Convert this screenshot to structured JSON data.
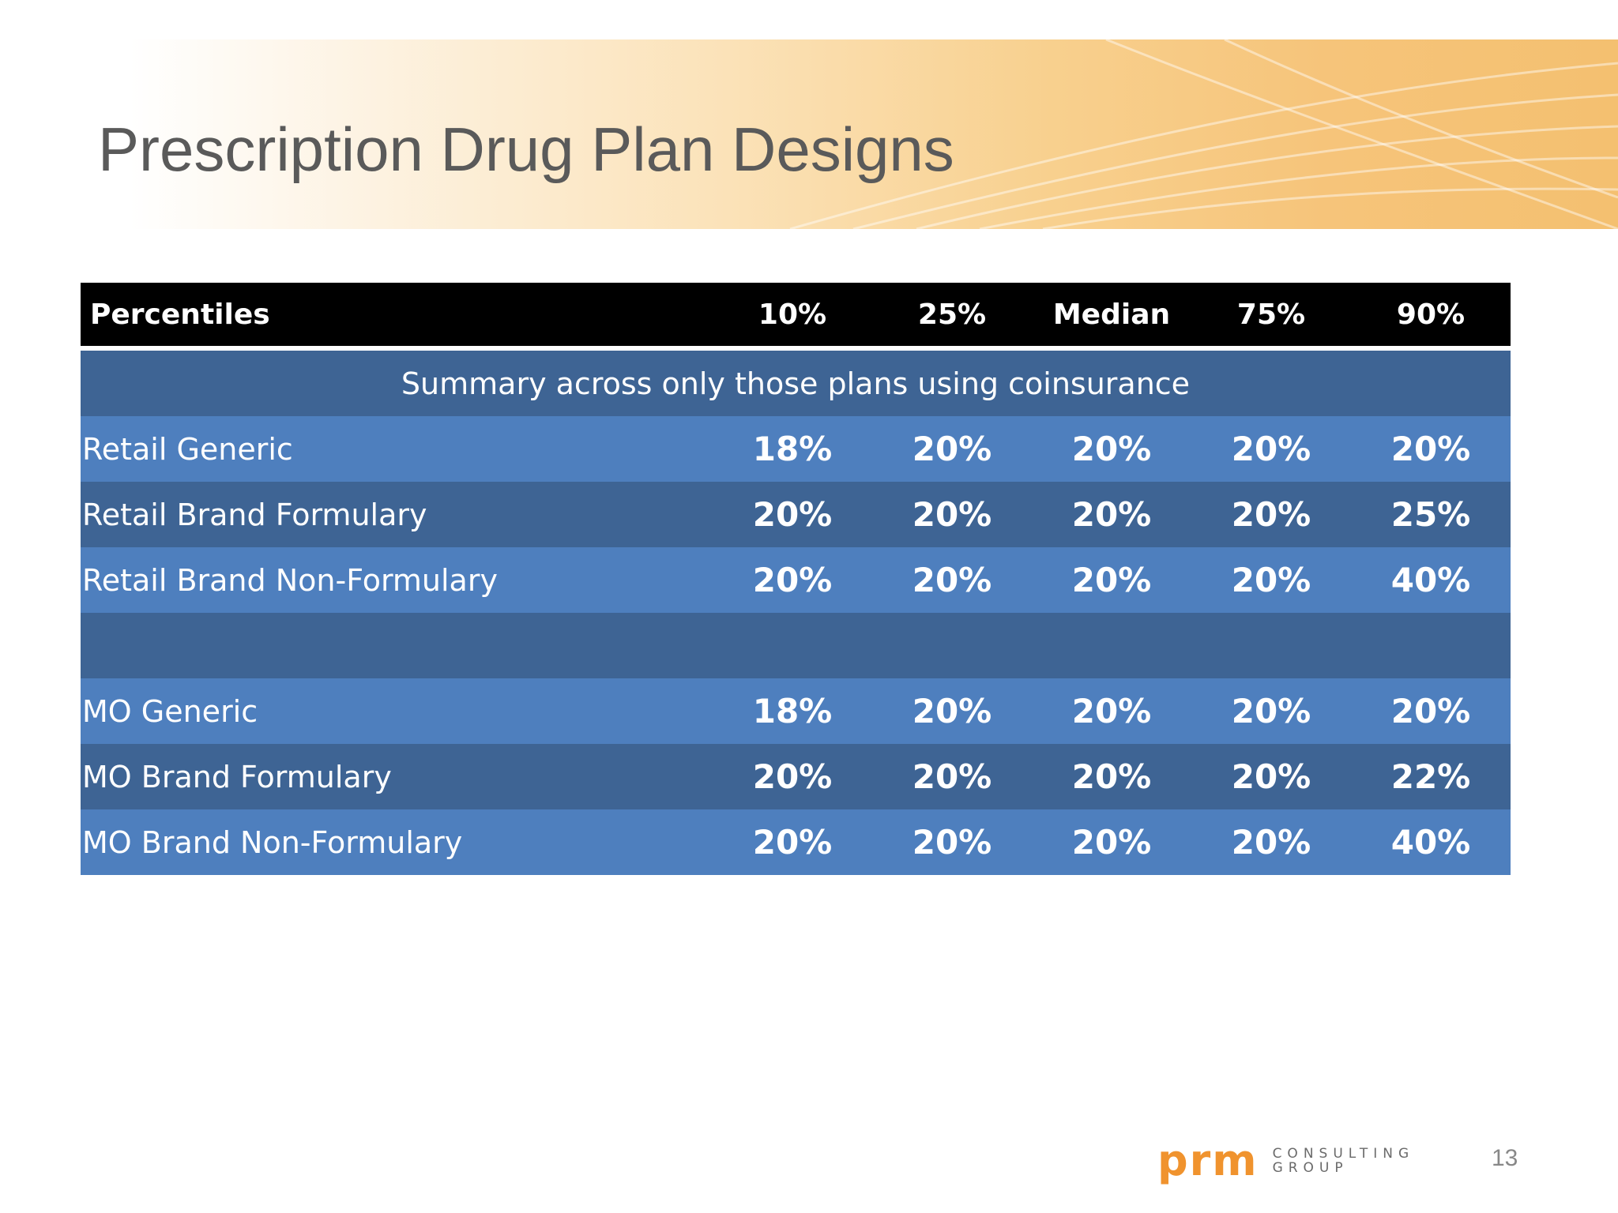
{
  "slide": {
    "title": "Prescription Drug Plan Designs",
    "page_number": "13"
  },
  "table": {
    "headers": [
      "Percentiles",
      "10%",
      "25%",
      "Median",
      "75%",
      "90%"
    ],
    "summary_row": "Summary across only those plans using coinsurance",
    "group1": [
      {
        "label": "Retail Generic",
        "values": [
          "18%",
          "20%",
          "20%",
          "20%",
          "20%"
        ]
      },
      {
        "label": "Retail Brand Formulary",
        "values": [
          "20%",
          "20%",
          "20%",
          "20%",
          "25%"
        ]
      },
      {
        "label": "Retail Brand Non-Formulary",
        "values": [
          "20%",
          "20%",
          "20%",
          "20%",
          "40%"
        ]
      }
    ],
    "group2": [
      {
        "label": "MO Generic",
        "values": [
          "18%",
          "20%",
          "20%",
          "20%",
          "20%"
        ]
      },
      {
        "label": "MO Brand Formulary",
        "values": [
          "20%",
          "20%",
          "20%",
          "20%",
          "22%"
        ]
      },
      {
        "label": "MO Brand Non-Formulary",
        "values": [
          "20%",
          "20%",
          "20%",
          "20%",
          "40%"
        ]
      }
    ]
  },
  "logo": {
    "mark": "prm",
    "line1": "CONSULTING",
    "line2": "GROUP"
  },
  "colors": {
    "header_bg": "#000000",
    "row_dark": "#3e6494",
    "row_light": "#4e7fbe",
    "accent_orange": "#f0932e"
  }
}
